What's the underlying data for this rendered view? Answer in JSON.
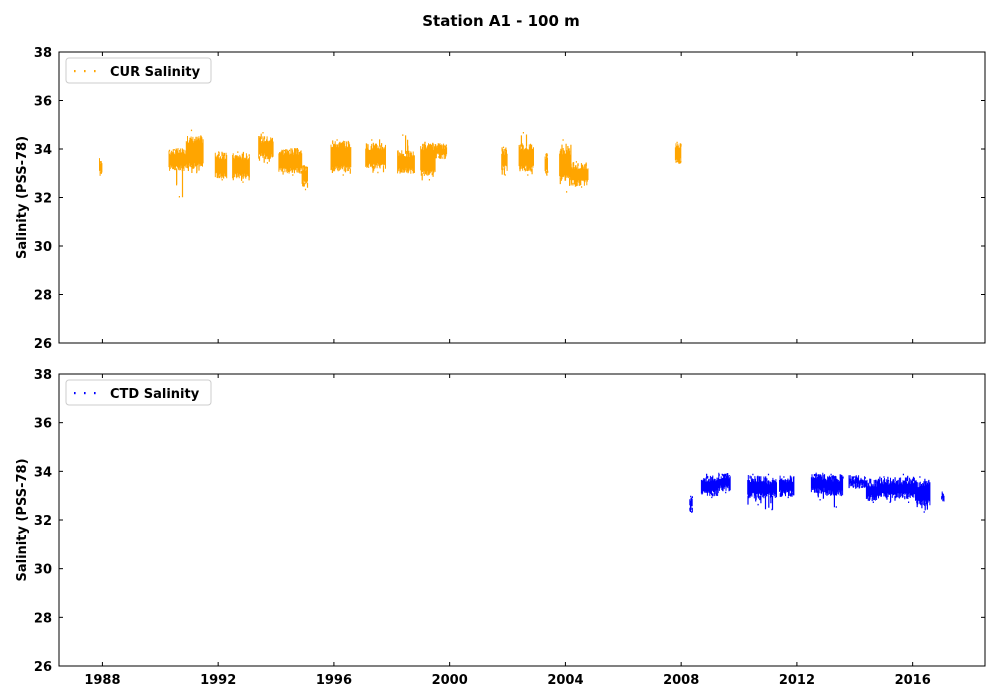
{
  "chart_data": [
    {
      "type": "scatter",
      "title": "Station A1 - 100 m",
      "ylabel": "Salinity (PSS-78)",
      "xlabel": "",
      "xlim": [
        1986.5,
        2018.5
      ],
      "ylim": [
        26,
        38
      ],
      "x_ticks": [
        "1988",
        "1992",
        "1996",
        "2000",
        "2004",
        "2008",
        "2012",
        "2016"
      ],
      "y_ticks": [
        "26",
        "28",
        "30",
        "32",
        "34",
        "36",
        "38"
      ],
      "legend": "upper-left",
      "grid": false,
      "series": [
        {
          "name": "CUR Salinity",
          "color": "#ffa500",
          "segments": [
            {
              "x0": 1987.9,
              "x1": 1988.0,
              "low": 33.0,
              "high": 33.5,
              "min": 33.0,
              "max": 33.5
            },
            {
              "x0": 1990.3,
              "x1": 1990.9,
              "low": 33.2,
              "high": 33.9,
              "min": 32.0,
              "max": 34.0
            },
            {
              "x0": 1990.9,
              "x1": 1991.5,
              "low": 33.3,
              "high": 34.4,
              "min": 33.0,
              "max": 34.8
            },
            {
              "x0": 1991.9,
              "x1": 1992.3,
              "low": 32.9,
              "high": 33.7,
              "min": 32.7,
              "max": 33.9
            },
            {
              "x0": 1992.5,
              "x1": 1993.1,
              "low": 32.9,
              "high": 33.7,
              "min": 32.6,
              "max": 33.9
            },
            {
              "x0": 1993.4,
              "x1": 1993.9,
              "low": 33.7,
              "high": 34.4,
              "min": 33.4,
              "max": 34.7
            },
            {
              "x0": 1994.1,
              "x1": 1994.9,
              "low": 33.1,
              "high": 33.9,
              "min": 32.9,
              "max": 34.0
            },
            {
              "x0": 1994.9,
              "x1": 1995.1,
              "low": 32.6,
              "high": 33.2,
              "min": 32.3,
              "max": 33.3
            },
            {
              "x0": 1995.9,
              "x1": 1996.6,
              "low": 33.2,
              "high": 34.2,
              "min": 32.9,
              "max": 34.4
            },
            {
              "x0": 1997.1,
              "x1": 1997.8,
              "low": 33.3,
              "high": 34.1,
              "min": 33.0,
              "max": 34.4
            },
            {
              "x0": 1998.2,
              "x1": 1998.8,
              "low": 33.1,
              "high": 33.8,
              "min": 33.0,
              "max": 34.6
            },
            {
              "x0": 1999.0,
              "x1": 1999.5,
              "low": 33.0,
              "high": 34.1,
              "min": 32.7,
              "max": 34.3
            },
            {
              "x0": 1999.5,
              "x1": 1999.9,
              "low": 33.7,
              "high": 34.1,
              "min": 33.6,
              "max": 34.2
            },
            {
              "x0": 2001.8,
              "x1": 2002.0,
              "low": 33.2,
              "high": 33.9,
              "min": 32.9,
              "max": 34.1
            },
            {
              "x0": 2002.4,
              "x1": 2002.9,
              "low": 33.2,
              "high": 34.1,
              "min": 32.9,
              "max": 34.7
            },
            {
              "x0": 2003.3,
              "x1": 2003.4,
              "low": 33.1,
              "high": 33.7,
              "min": 32.9,
              "max": 33.8
            },
            {
              "x0": 2003.8,
              "x1": 2004.2,
              "low": 32.8,
              "high": 33.9,
              "min": 32.2,
              "max": 34.4
            },
            {
              "x0": 2004.2,
              "x1": 2004.8,
              "low": 32.6,
              "high": 33.3,
              "min": 32.4,
              "max": 33.5
            },
            {
              "x0": 2007.8,
              "x1": 2008.0,
              "low": 33.5,
              "high": 34.1,
              "min": 33.4,
              "max": 34.3
            }
          ]
        }
      ]
    },
    {
      "type": "scatter",
      "title": "",
      "ylabel": "Salinity (PSS-78)",
      "xlabel": "",
      "xlim": [
        1986.5,
        2018.5
      ],
      "ylim": [
        26,
        38
      ],
      "x_ticks": [
        "1988",
        "1992",
        "1996",
        "2000",
        "2004",
        "2008",
        "2012",
        "2016"
      ],
      "y_ticks": [
        "26",
        "28",
        "30",
        "32",
        "34",
        "36",
        "38"
      ],
      "legend": "upper-left",
      "grid": false,
      "series": [
        {
          "name": "CTD Salinity",
          "color": "#0000ff",
          "segments": [
            {
              "x0": 2008.3,
              "x1": 2008.4,
              "low": 32.5,
              "high": 32.9,
              "min": 32.3,
              "max": 33.0
            },
            {
              "x0": 2008.7,
              "x1": 2009.3,
              "low": 33.1,
              "high": 33.7,
              "min": 32.9,
              "max": 33.9
            },
            {
              "x0": 2009.3,
              "x1": 2009.7,
              "low": 33.3,
              "high": 33.8,
              "min": 33.1,
              "max": 33.9
            },
            {
              "x0": 2010.3,
              "x1": 2010.9,
              "low": 33.0,
              "high": 33.7,
              "min": 32.6,
              "max": 33.9
            },
            {
              "x0": 2010.9,
              "x1": 2011.3,
              "low": 33.0,
              "high": 33.6,
              "min": 32.4,
              "max": 33.9
            },
            {
              "x0": 2011.4,
              "x1": 2011.9,
              "low": 33.1,
              "high": 33.7,
              "min": 32.9,
              "max": 33.8
            },
            {
              "x0": 2012.5,
              "x1": 2013.0,
              "low": 33.2,
              "high": 33.8,
              "min": 32.8,
              "max": 33.9
            },
            {
              "x0": 2013.0,
              "x1": 2013.6,
              "low": 33.1,
              "high": 33.7,
              "min": 32.5,
              "max": 33.9
            },
            {
              "x0": 2013.8,
              "x1": 2014.4,
              "low": 33.4,
              "high": 33.7,
              "min": 33.3,
              "max": 33.8
            },
            {
              "x0": 2014.4,
              "x1": 2014.8,
              "low": 32.9,
              "high": 33.5,
              "min": 32.7,
              "max": 33.7
            },
            {
              "x0": 2014.8,
              "x1": 2015.5,
              "low": 33.0,
              "high": 33.6,
              "min": 32.7,
              "max": 33.8
            },
            {
              "x0": 2015.5,
              "x1": 2016.1,
              "low": 33.0,
              "high": 33.6,
              "min": 32.7,
              "max": 33.9
            },
            {
              "x0": 2016.1,
              "x1": 2016.6,
              "low": 32.7,
              "high": 33.5,
              "min": 32.3,
              "max": 33.8
            },
            {
              "x0": 2017.0,
              "x1": 2017.1,
              "low": 32.8,
              "high": 33.1,
              "min": 32.8,
              "max": 33.1
            }
          ]
        }
      ]
    }
  ]
}
